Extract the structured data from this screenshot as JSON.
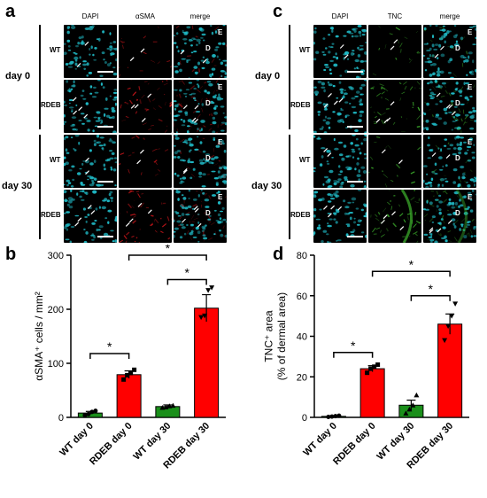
{
  "panel_letters": {
    "a": "a",
    "b": "b",
    "c": "c",
    "d": "d"
  },
  "panel_a": {
    "columns": [
      "DAPI",
      "αSMA",
      "merge"
    ],
    "days": [
      "day 0",
      "day 30"
    ],
    "genotypes": [
      "WT",
      "RDEB",
      "WT",
      "RDEB"
    ]
  },
  "panel_c": {
    "columns": [
      "DAPI",
      "TNC",
      "merge"
    ],
    "days": [
      "day 0",
      "day 30"
    ],
    "genotypes": [
      "WT",
      "RDEB",
      "WT",
      "RDEB"
    ]
  },
  "tile_letters": {
    "E": "E",
    "D": "D"
  },
  "colors": {
    "dapi": "#1fb8c4",
    "asma": "#d4171c",
    "tnc": "#3fb52e",
    "bar_red": "#ff0000",
    "bar_green": "#1a8f1a",
    "background": "#000000"
  },
  "chart_data": [
    {
      "type": "bar",
      "ylabel": "αSMA⁺ cells / mm²",
      "categories": [
        "WT day 0",
        "RDEB day 0",
        "WT day 30",
        "RDEB day 30"
      ],
      "values": [
        8,
        79,
        20,
        202
      ],
      "errors": [
        3,
        7,
        3,
        25
      ],
      "points": [
        [
          4,
          6,
          10,
          12
        ],
        [
          70,
          78,
          82,
          88
        ],
        [
          18,
          19,
          21,
          22
        ],
        [
          185,
          188,
          235,
          240
        ]
      ],
      "bar_colors": [
        "#1a8f1a",
        "#ff0000",
        "#1a8f1a",
        "#ff0000"
      ],
      "ylim": [
        0,
        300
      ],
      "yticks": [
        0,
        100,
        200,
        300
      ],
      "significance": [
        {
          "from": 0,
          "to": 1,
          "label": "*"
        },
        {
          "from": 2,
          "to": 3,
          "label": "*"
        },
        {
          "from": 1,
          "to": 3,
          "label": "*"
        }
      ]
    },
    {
      "type": "bar",
      "ylabel": "TNC⁺ area (% of dermal area)",
      "categories": [
        "WT day 0",
        "RDEB day 0",
        "WT day 30",
        "RDEB day 30"
      ],
      "values": [
        0.5,
        24,
        6,
        46
      ],
      "errors": [
        0.3,
        1.5,
        2.5,
        5
      ],
      "points": [
        [
          0.2,
          0.4,
          0.6,
          0.8
        ],
        [
          22,
          24,
          25,
          26
        ],
        [
          2,
          4,
          6,
          11
        ],
        [
          38,
          45,
          50,
          56
        ]
      ],
      "bar_colors": [
        "#1a8f1a",
        "#ff0000",
        "#1a8f1a",
        "#ff0000"
      ],
      "ylim": [
        0,
        80
      ],
      "yticks": [
        0,
        20,
        40,
        60,
        80
      ],
      "significance": [
        {
          "from": 0,
          "to": 1,
          "label": "*"
        },
        {
          "from": 2,
          "to": 3,
          "label": "*"
        },
        {
          "from": 1,
          "to": 3,
          "label": "*"
        }
      ]
    }
  ]
}
